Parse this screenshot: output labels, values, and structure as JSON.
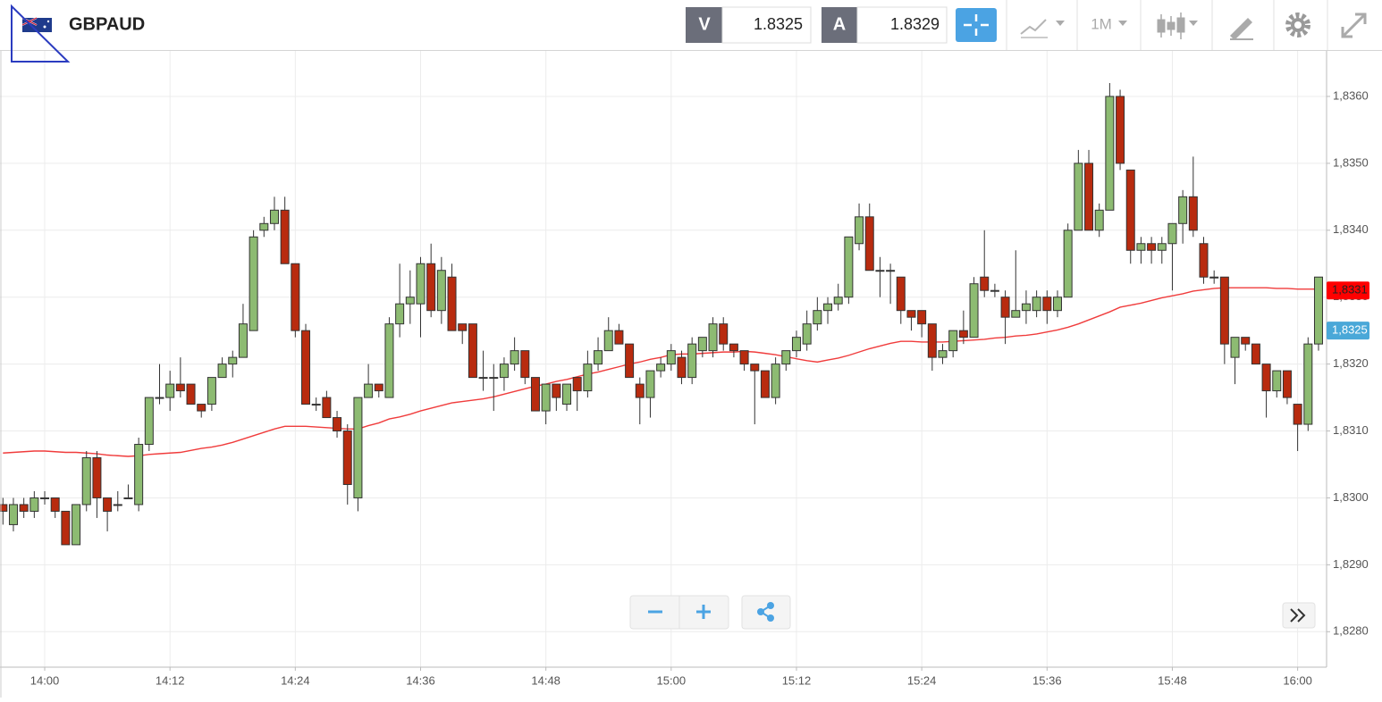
{
  "header": {
    "symbol": "GBPAUD",
    "bid_label": "V",
    "bid": 1.8325,
    "ask_label": "A",
    "ask": 1.8329,
    "timeframe": "1M"
  },
  "chart_data": {
    "type": "candlestick",
    "x": [
      "13:56",
      "13:57",
      "13:58",
      "13:59",
      "14:00",
      "14:01",
      "14:02",
      "14:03",
      "14:04",
      "14:05",
      "14:06",
      "14:07",
      "14:08",
      "14:09",
      "14:10",
      "14:11",
      "14:12",
      "14:13",
      "14:14",
      "14:15",
      "14:16",
      "14:17",
      "14:18",
      "14:19",
      "14:20",
      "14:21",
      "14:22",
      "14:23",
      "14:24",
      "14:25",
      "14:26",
      "14:27",
      "14:28",
      "14:29",
      "14:30",
      "14:31",
      "14:32",
      "14:33",
      "14:34",
      "14:35",
      "14:36",
      "14:37",
      "14:38",
      "14:39",
      "14:40",
      "14:41",
      "14:42",
      "14:43",
      "14:44",
      "14:45",
      "14:46",
      "14:47",
      "14:48",
      "14:49",
      "14:50",
      "14:51",
      "14:52",
      "14:53",
      "14:54",
      "14:55",
      "14:56",
      "14:57",
      "14:58",
      "14:59",
      "15:00",
      "15:01",
      "15:02",
      "15:03",
      "15:04",
      "15:05",
      "15:06",
      "15:07",
      "15:08",
      "15:09",
      "15:10",
      "15:11",
      "15:12",
      "15:13",
      "15:14",
      "15:15",
      "15:16",
      "15:17",
      "15:18",
      "15:19",
      "15:20",
      "15:21",
      "15:22",
      "15:23",
      "15:24",
      "15:25",
      "15:26",
      "15:27",
      "15:28",
      "15:29",
      "15:30",
      "15:31",
      "15:32",
      "15:33",
      "15:34",
      "15:35",
      "15:36",
      "15:37",
      "15:38",
      "15:39",
      "15:40",
      "15:41",
      "15:42",
      "15:43",
      "15:44",
      "15:45",
      "15:46",
      "15:47",
      "15:48",
      "15:49",
      "15:50",
      "15:51",
      "15:52",
      "15:53",
      "15:54",
      "15:55",
      "15:56",
      "15:57",
      "15:58",
      "15:59",
      "16:00",
      "16:01",
      "16:02"
    ],
    "open": [
      1.8299,
      1.8296,
      1.8299,
      1.8298,
      1.83,
      1.83,
      1.8298,
      1.8293,
      1.8299,
      1.8306,
      1.83,
      1.8299,
      1.83,
      1.8299,
      1.8308,
      1.8315,
      1.8315,
      1.8317,
      1.8317,
      1.8314,
      1.8314,
      1.8318,
      1.832,
      1.8321,
      1.8325,
      1.834,
      1.8341,
      1.8343,
      1.8335,
      1.8325,
      1.8314,
      1.8315,
      1.8312,
      1.831,
      1.83,
      1.8315,
      1.8317,
      1.8315,
      1.8326,
      1.8329,
      1.8329,
      1.8335,
      1.8328,
      1.8333,
      1.8326,
      1.8326,
      1.8318,
      1.8318,
      1.8318,
      1.832,
      1.8322,
      1.8318,
      1.8313,
      1.8317,
      1.8314,
      1.8318,
      1.8316,
      1.832,
      1.8322,
      1.8325,
      1.8323,
      1.8317,
      1.8315,
      1.8319,
      1.832,
      1.8321,
      1.8318,
      1.8322,
      1.8322,
      1.8326,
      1.8323,
      1.8322,
      1.832,
      1.8319,
      1.8315,
      1.832,
      1.8322,
      1.8323,
      1.8326,
      1.8328,
      1.8329,
      1.833,
      1.8338,
      1.8342,
      1.8334,
      1.8334,
      1.8333,
      1.8328,
      1.8328,
      1.8326,
      1.8321,
      1.8322,
      1.8325,
      1.8324,
      1.8333,
      1.8331,
      1.833,
      1.8327,
      1.8328,
      1.8328,
      1.833,
      1.8328,
      1.833,
      1.834,
      1.835,
      1.834,
      1.8343,
      1.836,
      1.8349,
      1.8337,
      1.8338,
      1.8337,
      1.8338,
      1.8341,
      1.8345,
      1.8338,
      1.8333,
      1.8333,
      1.8321,
      1.8324,
      1.8323,
      1.832,
      1.8316,
      1.8319,
      1.8314,
      1.8311,
      1.8323
    ],
    "high": [
      1.83,
      1.83,
      1.83,
      1.8301,
      1.8301,
      1.83,
      1.8298,
      1.8299,
      1.8307,
      1.8307,
      1.83,
      1.8301,
      1.8302,
      1.8309,
      1.8315,
      1.832,
      1.8319,
      1.8321,
      1.8317,
      1.8314,
      1.8318,
      1.8321,
      1.8322,
      1.8329,
      1.834,
      1.8342,
      1.8345,
      1.8345,
      1.8335,
      1.8326,
      1.8315,
      1.8316,
      1.8313,
      1.8311,
      1.8315,
      1.832,
      1.8317,
      1.8327,
      1.8335,
      1.8334,
      1.8336,
      1.8338,
      1.8336,
      1.8335,
      1.8326,
      1.8326,
      1.8322,
      1.832,
      1.8321,
      1.8324,
      1.8322,
      1.8318,
      1.8317,
      1.8317,
      1.8317,
      1.8318,
      1.8322,
      1.8324,
      1.8327,
      1.8326,
      1.8323,
      1.8318,
      1.8319,
      1.8321,
      1.8323,
      1.8322,
      1.8324,
      1.8324,
      1.8327,
      1.8327,
      1.8323,
      1.8322,
      1.832,
      1.8319,
      1.8321,
      1.8322,
      1.8325,
      1.8328,
      1.833,
      1.833,
      1.8332,
      1.8339,
      1.8344,
      1.8344,
      1.8336,
      1.8335,
      1.8333,
      1.8328,
      1.8328,
      1.8326,
      1.8323,
      1.8325,
      1.8328,
      1.8333,
      1.834,
      1.8332,
      1.8331,
      1.8337,
      1.8331,
      1.8331,
      1.8331,
      1.8331,
      1.8341,
      1.8352,
      1.8352,
      1.8344,
      1.8362,
      1.8361,
      1.8349,
      1.8339,
      1.8339,
      1.8339,
      1.8341,
      1.8346,
      1.8351,
      1.8339,
      1.8334,
      1.8333,
      1.8324,
      1.8324,
      1.8323,
      1.832,
      1.8319,
      1.8319,
      1.8314,
      1.8324,
      1.8333
    ],
    "low": [
      1.8296,
      1.8295,
      1.8297,
      1.8297,
      1.8299,
      1.8297,
      1.8293,
      1.8293,
      1.8298,
      1.8297,
      1.8295,
      1.8298,
      1.83,
      1.8298,
      1.8307,
      1.8314,
      1.8313,
      1.8315,
      1.8314,
      1.8312,
      1.8313,
      1.8318,
      1.8318,
      1.8321,
      1.8325,
      1.8339,
      1.834,
      1.8335,
      1.8324,
      1.8314,
      1.8313,
      1.8312,
      1.8309,
      1.8299,
      1.8298,
      1.8315,
      1.8315,
      1.8315,
      1.8324,
      1.8326,
      1.8324,
      1.8327,
      1.8326,
      1.8325,
      1.8323,
      1.8318,
      1.8316,
      1.8313,
      1.8316,
      1.8319,
      1.8317,
      1.8313,
      1.8311,
      1.8313,
      1.8313,
      1.8313,
      1.8315,
      1.8319,
      1.8322,
      1.8323,
      1.8318,
      1.8311,
      1.8312,
      1.8318,
      1.8319,
      1.8317,
      1.8317,
      1.8321,
      1.8321,
      1.8322,
      1.8321,
      1.8319,
      1.8311,
      1.8315,
      1.8314,
      1.8319,
      1.8321,
      1.8322,
      1.8325,
      1.8326,
      1.8328,
      1.8329,
      1.8337,
      1.8334,
      1.833,
      1.8329,
      1.8326,
      1.8325,
      1.8324,
      1.8319,
      1.832,
      1.8321,
      1.8323,
      1.8324,
      1.833,
      1.833,
      1.8323,
      1.8327,
      1.8326,
      1.8327,
      1.8326,
      1.8327,
      1.833,
      1.834,
      1.834,
      1.8339,
      1.8343,
      1.8349,
      1.8335,
      1.8335,
      1.8335,
      1.8335,
      1.8331,
      1.8338,
      1.8339,
      1.8332,
      1.8332,
      1.832,
      1.8317,
      1.8322,
      1.832,
      1.8312,
      1.8315,
      1.8314,
      1.8307,
      1.831,
      1.8322
    ],
    "close": [
      1.8298,
      1.8299,
      1.8298,
      1.83,
      1.83,
      1.8298,
      1.8293,
      1.8299,
      1.8306,
      1.83,
      1.8298,
      1.8299,
      1.83,
      1.8308,
      1.8315,
      1.8315,
      1.8317,
      1.8316,
      1.8314,
      1.8313,
      1.8318,
      1.832,
      1.8321,
      1.8326,
      1.8339,
      1.8341,
      1.8343,
      1.8335,
      1.8325,
      1.8314,
      1.8314,
      1.8312,
      1.831,
      1.8302,
      1.8315,
      1.8317,
      1.8316,
      1.8326,
      1.8329,
      1.833,
      1.8335,
      1.8328,
      1.8334,
      1.8325,
      1.8325,
      1.8318,
      1.8318,
      1.8318,
      1.832,
      1.8322,
      1.8318,
      1.8313,
      1.8317,
      1.8315,
      1.8317,
      1.8316,
      1.832,
      1.8322,
      1.8325,
      1.8323,
      1.8318,
      1.8315,
      1.8319,
      1.832,
      1.8322,
      1.8318,
      1.8323,
      1.8324,
      1.8326,
      1.8323,
      1.8322,
      1.832,
      1.8319,
      1.8315,
      1.832,
      1.8322,
      1.8324,
      1.8326,
      1.8328,
      1.8329,
      1.833,
      1.8339,
      1.8342,
      1.8334,
      1.8334,
      1.8334,
      1.8328,
      1.8327,
      1.8326,
      1.8321,
      1.8322,
      1.8325,
      1.8324,
      1.8332,
      1.8331,
      1.8331,
      1.8327,
      1.8328,
      1.8329,
      1.833,
      1.8328,
      1.833,
      1.834,
      1.835,
      1.834,
      1.8343,
      1.836,
      1.835,
      1.8337,
      1.8338,
      1.8337,
      1.8338,
      1.8341,
      1.8345,
      1.834,
      1.8333,
      1.8333,
      1.8323,
      1.8324,
      1.8323,
      1.832,
      1.8316,
      1.8319,
      1.8315,
      1.8311,
      1.8323,
      1.8333
    ],
    "up_color": "#8dbb72",
    "down_color": "#b82b0f",
    "ma": {
      "color": "#f03c3c",
      "values": [
        1.83067,
        1.83068,
        1.83069,
        1.8307,
        1.8307,
        1.83069,
        1.83068,
        1.83068,
        1.83067,
        1.83066,
        1.83064,
        1.83063,
        1.83062,
        1.83063,
        1.83065,
        1.83066,
        1.83067,
        1.83068,
        1.83071,
        1.83074,
        1.83076,
        1.83079,
        1.83083,
        1.83088,
        1.83093,
        1.83098,
        1.83103,
        1.83107,
        1.83107,
        1.83107,
        1.83106,
        1.83105,
        1.83104,
        1.83103,
        1.83103,
        1.83108,
        1.83112,
        1.83118,
        1.83121,
        1.83125,
        1.8313,
        1.83134,
        1.83138,
        1.83142,
        1.83144,
        1.83146,
        1.83148,
        1.83151,
        1.83155,
        1.83159,
        1.83163,
        1.83167,
        1.8317,
        1.83174,
        1.83177,
        1.83181,
        1.83185,
        1.83188,
        1.83192,
        1.83196,
        1.832,
        1.83203,
        1.83207,
        1.8321,
        1.83214,
        1.83215,
        1.83215,
        1.83216,
        1.83217,
        1.83218,
        1.83218,
        1.83219,
        1.83218,
        1.83216,
        1.83214,
        1.83211,
        1.83208,
        1.83205,
        1.83203,
        1.83206,
        1.83209,
        1.83213,
        1.83218,
        1.83223,
        1.83227,
        1.83231,
        1.83234,
        1.83234,
        1.83233,
        1.83233,
        1.83233,
        1.83234,
        1.83235,
        1.83236,
        1.83237,
        1.83239,
        1.8324,
        1.83242,
        1.83243,
        1.83245,
        1.83248,
        1.83251,
        1.83255,
        1.8326,
        1.83266,
        1.83272,
        1.83278,
        1.83285,
        1.83288,
        1.83291,
        1.83295,
        1.83299,
        1.83302,
        1.83305,
        1.83309,
        1.83311,
        1.83313,
        1.83314,
        1.83314,
        1.83314,
        1.83314,
        1.83314,
        1.83313,
        1.83313,
        1.83312,
        1.83312,
        1.83312
      ]
    },
    "ylim": [
      1.82747,
      1.83668
    ],
    "yticks": [
      {
        "value": 1.828,
        "label": "1,8280"
      },
      {
        "value": 1.829,
        "label": "1,8290"
      },
      {
        "value": 1.83,
        "label": "1,8300"
      },
      {
        "value": 1.831,
        "label": "1,8310"
      },
      {
        "value": 1.832,
        "label": "1,8320"
      },
      {
        "value": 1.833,
        "label": "1,8330"
      },
      {
        "value": 1.834,
        "label": "1,8340"
      },
      {
        "value": 1.835,
        "label": "1,8350"
      },
      {
        "value": 1.836,
        "label": "1,8360"
      }
    ],
    "xticks": [
      "14:00",
      "14:12",
      "14:24",
      "14:36",
      "14:48",
      "15:00",
      "15:12",
      "15:24",
      "15:36",
      "15:48",
      "16:00"
    ],
    "grid": true,
    "price_markers": [
      {
        "value": 1.8331,
        "label": "1,8331",
        "color": "#ff0000"
      },
      {
        "value": 1.8325,
        "label": "1,8325",
        "color": "#4aa8d8"
      }
    ]
  }
}
